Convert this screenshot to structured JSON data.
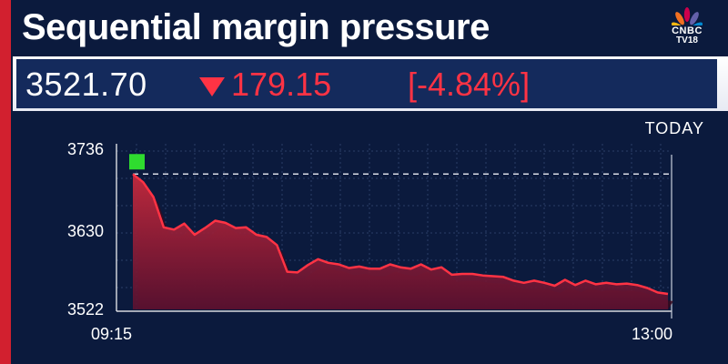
{
  "header": {
    "title": "Sequential margin pressure",
    "logo_line1": "CNBC",
    "logo_line2": "TV18"
  },
  "ticker": {
    "price": "3521.70",
    "change": "179.15",
    "change_pct": "[-4.84%]",
    "direction": "down"
  },
  "colors": {
    "background": "#0b1a3d",
    "line": "#ff3344",
    "fill": "#b3263a",
    "accent": "#d2202f"
  },
  "chart_data": {
    "type": "area",
    "period_label": "TODAY",
    "x_start": "09:15",
    "x_end": "13:00",
    "y_ticks": [
      "3736",
      "3630",
      "3522"
    ],
    "ylim": [
      3522,
      3736
    ],
    "reference_value": 3700,
    "values": [
      3700,
      3689,
      3669,
      3628,
      3625,
      3633,
      3618,
      3627,
      3637,
      3634,
      3627,
      3628,
      3618,
      3615,
      3604,
      3568,
      3567,
      3577,
      3585,
      3580,
      3578,
      3573,
      3575,
      3572,
      3572,
      3578,
      3574,
      3572,
      3578,
      3571,
      3574,
      3564,
      3565,
      3565,
      3563,
      3562,
      3561,
      3556,
      3553,
      3556,
      3553,
      3549,
      3557,
      3550,
      3556,
      3551,
      3553,
      3551,
      3552,
      3550,
      3546,
      3540,
      3538
    ]
  }
}
